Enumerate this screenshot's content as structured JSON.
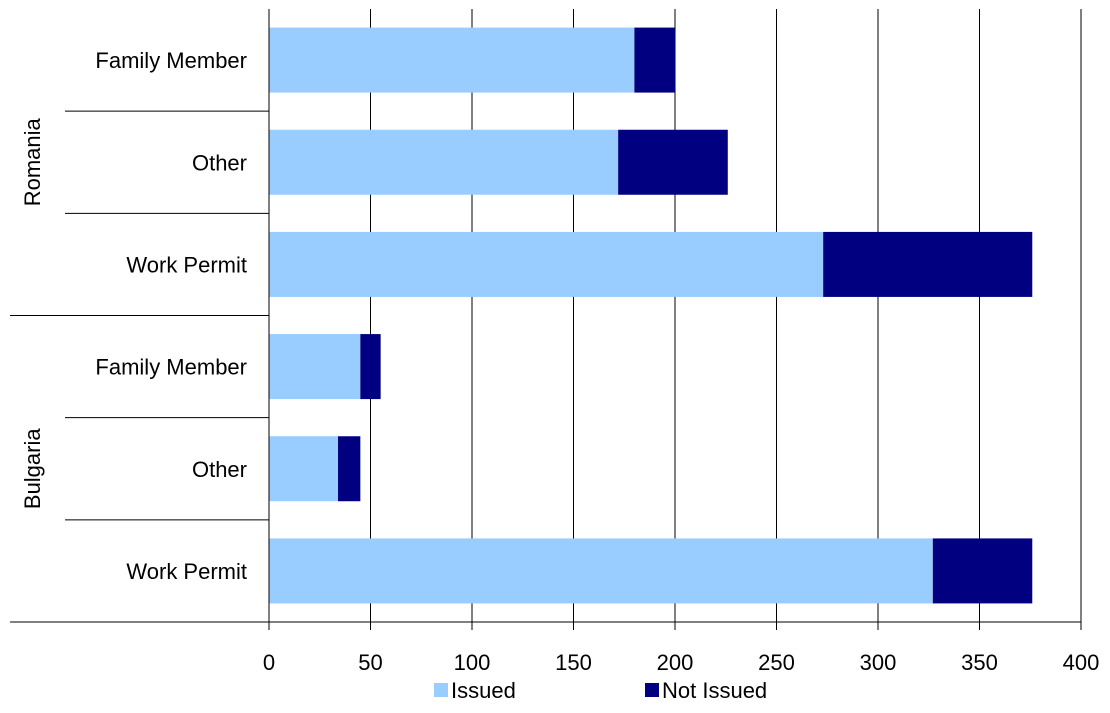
{
  "chart_data": {
    "type": "bar",
    "orientation": "horizontal",
    "stacked": true,
    "groups": [
      {
        "name": "Romania",
        "categories": [
          "Family Member",
          "Other",
          "Work Permit"
        ]
      },
      {
        "name": "Bulgaria",
        "categories": [
          "Family Member",
          "Other",
          "Work Permit"
        ]
      }
    ],
    "series": [
      {
        "name": "Issued",
        "color": "#99ccff",
        "values": [
          180,
          172,
          273,
          45,
          34,
          327
        ]
      },
      {
        "name": "Not Issued",
        "color": "#000080",
        "values": [
          20,
          54,
          103,
          10,
          11,
          49
        ]
      }
    ],
    "xlim": [
      0,
      400
    ],
    "xticks": [
      0,
      50,
      100,
      150,
      200,
      250,
      300,
      350,
      400
    ],
    "grid": "vertical",
    "legend": "bottom",
    "title": "",
    "xlabel": "",
    "ylabel": ""
  }
}
